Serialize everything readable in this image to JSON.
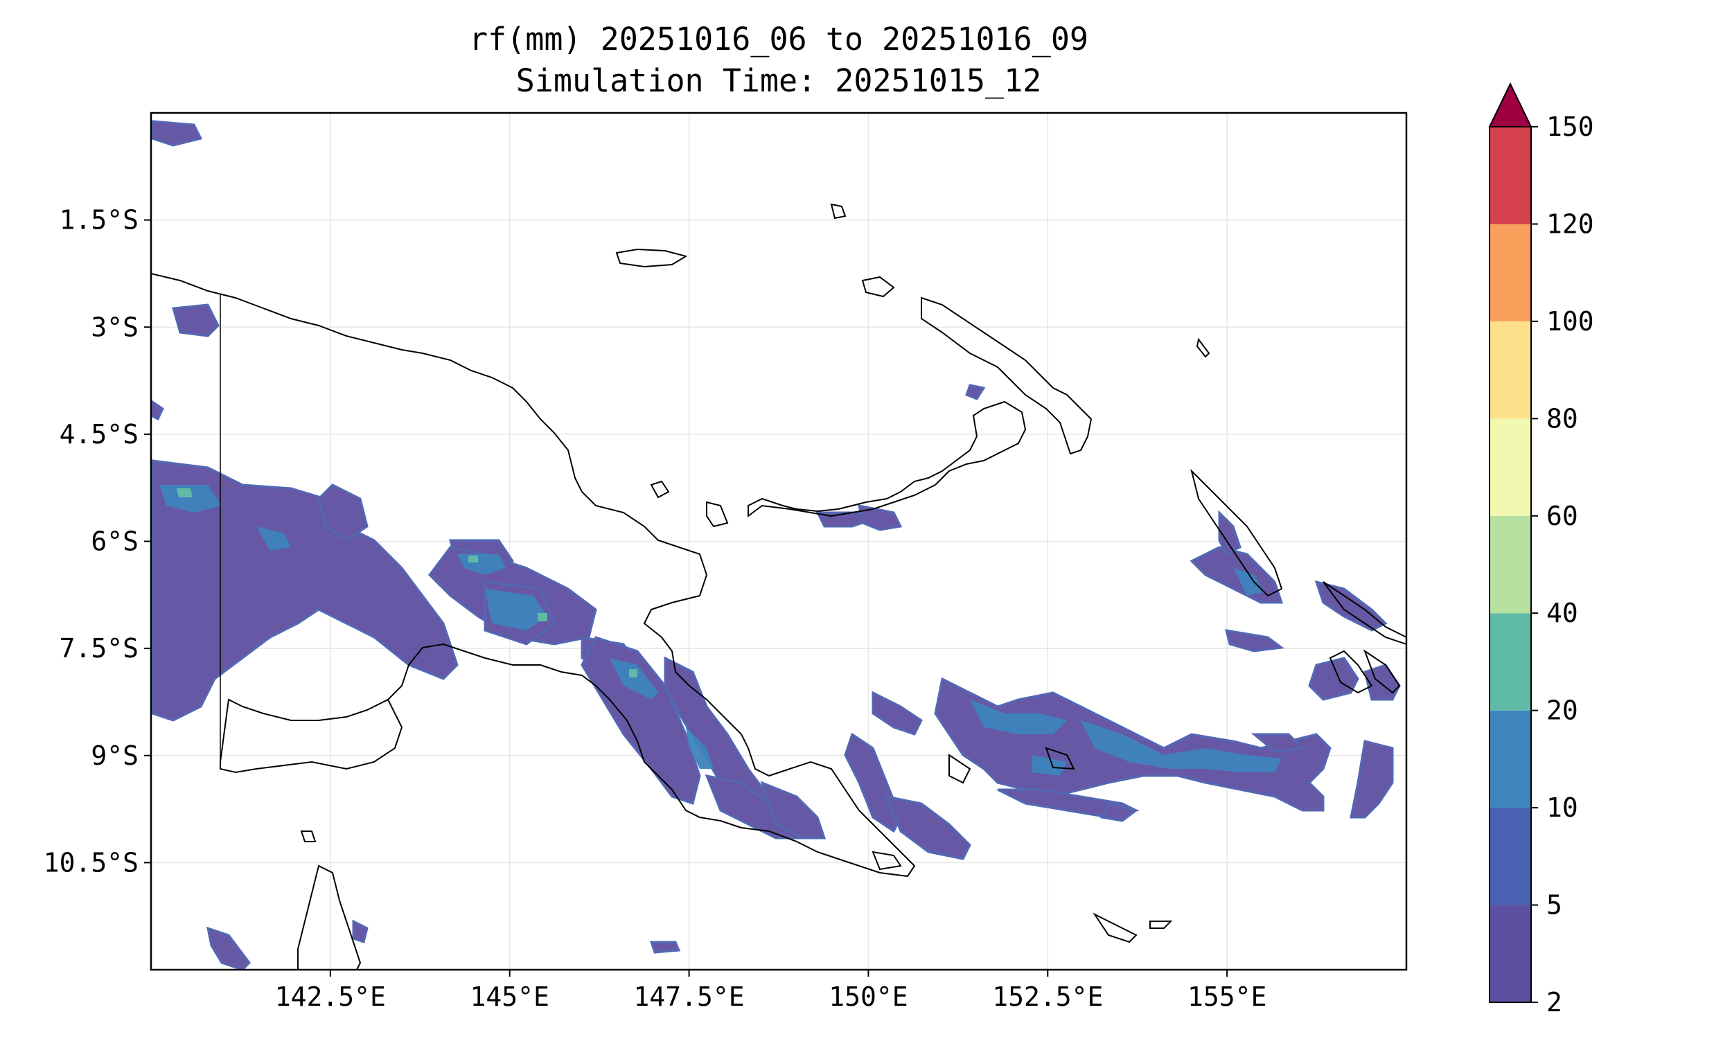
{
  "title": {
    "line1": "rf(mm) 20251016_06 to 20251016_09",
    "line2": "Simulation Time: 20251015_12"
  },
  "map": {
    "region": "Papua New Guinea",
    "lon_range": [
      140.0,
      157.5
    ],
    "lat_range": [
      -12.0,
      0.0
    ],
    "lon_ticks": [
      "142.5°E",
      "145°E",
      "147.5°E",
      "150°E",
      "152.5°E",
      "155°E"
    ],
    "lon_tick_values": [
      142.5,
      145,
      147.5,
      150,
      152.5,
      155
    ],
    "lat_ticks": [
      "1.5°S",
      "3°S",
      "4.5°S",
      "6°S",
      "7.5°S",
      "9°S",
      "10.5°S"
    ],
    "lat_tick_values": [
      -1.5,
      -3,
      -4.5,
      -6,
      -7.5,
      -9,
      -10.5
    ],
    "grid": true
  },
  "colorbar": {
    "levels": [
      "2",
      "5",
      "10",
      "20",
      "40",
      "60",
      "80",
      "100",
      "120",
      "150"
    ],
    "colors": [
      "#5e50a1",
      "#4a60b0",
      "#3e84bd",
      "#5fbba6",
      "#b7e1a0",
      "#f3f8b0",
      "#fde08a",
      "#f99f5c",
      "#d5414f"
    ],
    "extend_color": "#9e0142",
    "extend": "max"
  },
  "colors": {
    "coast": "#000000",
    "grid": "#e6e6e6"
  }
}
